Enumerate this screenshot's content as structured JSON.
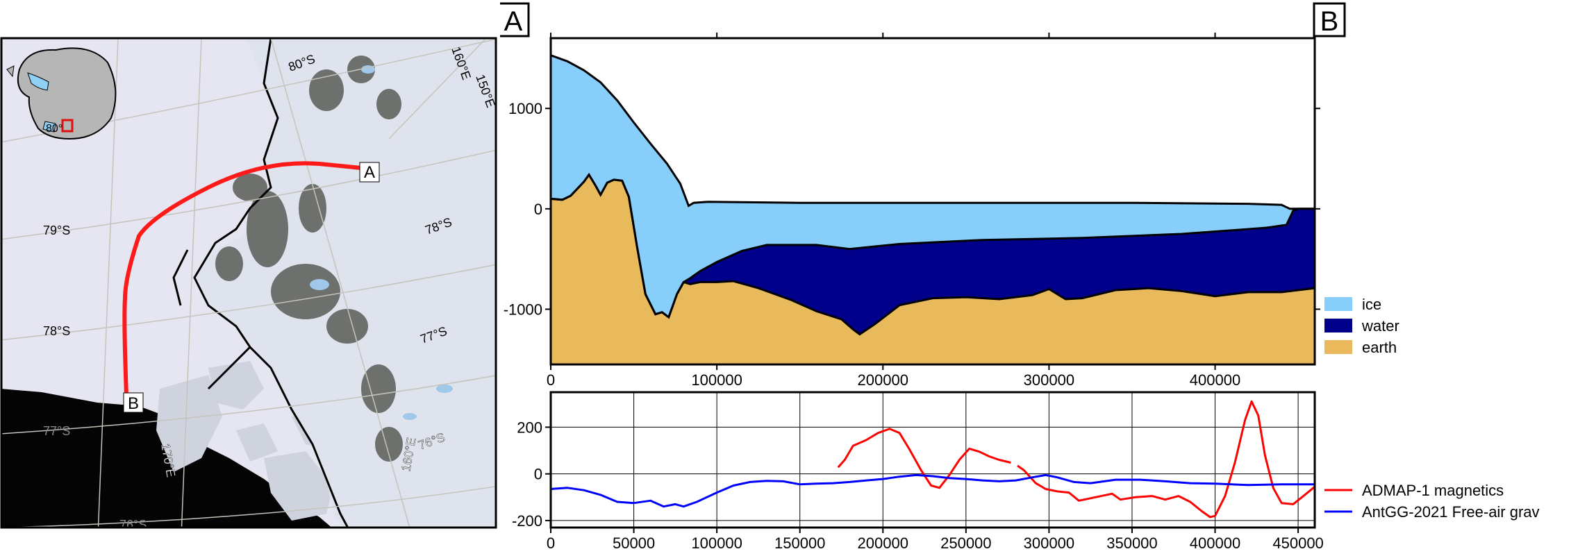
{
  "map": {
    "point_a": "A",
    "point_b": "B",
    "lat_labels": [
      "80°S",
      "79°S",
      "78°S",
      "78°S",
      "77°S",
      "77°S",
      "76°S",
      "76°S"
    ],
    "lon_labels": [
      "160°E",
      "150°E",
      "160°E",
      "170°E"
    ],
    "inset_label": "80°",
    "colors": {
      "profile_line": "#ff1a1a",
      "inset_box": "#e01010",
      "ocean": "#000000"
    }
  },
  "chart_data": [
    {
      "type": "area",
      "title": "",
      "corner_labels": [
        "A",
        "B"
      ],
      "xlim": [
        0,
        460000
      ],
      "ylim": [
        -1550,
        1700
      ],
      "x_ticks": [
        0,
        100000,
        200000,
        300000,
        400000
      ],
      "y_ticks": [
        1000,
        0,
        -1000
      ],
      "legend": [
        "ice",
        "water",
        "earth"
      ],
      "legend_position": "right",
      "colors": {
        "ice": "#87cefa",
        "water": "#00008b",
        "earth": "#e8ba5c"
      },
      "surface": [
        [
          0,
          1530
        ],
        [
          10000,
          1470
        ],
        [
          20000,
          1380
        ],
        [
          30000,
          1260
        ],
        [
          40000,
          1080
        ],
        [
          50000,
          860
        ],
        [
          60000,
          650
        ],
        [
          70000,
          450
        ],
        [
          78000,
          250
        ],
        [
          83000,
          30
        ],
        [
          86000,
          60
        ],
        [
          95000,
          70
        ],
        [
          150000,
          60
        ],
        [
          250000,
          60
        ],
        [
          350000,
          60
        ],
        [
          420000,
          50
        ],
        [
          440000,
          40
        ],
        [
          445000,
          0
        ],
        [
          460000,
          0
        ]
      ],
      "ice_base": [
        [
          0,
          100
        ],
        [
          7000,
          90
        ],
        [
          12000,
          130
        ],
        [
          20000,
          270
        ],
        [
          23000,
          340
        ],
        [
          27000,
          230
        ],
        [
          30000,
          140
        ],
        [
          34000,
          260
        ],
        [
          38000,
          290
        ],
        [
          43000,
          280
        ],
        [
          47000,
          120
        ],
        [
          52000,
          -380
        ],
        [
          57000,
          -850
        ],
        [
          63000,
          -1050
        ],
        [
          67000,
          -1030
        ],
        [
          71000,
          -1080
        ],
        [
          76000,
          -850
        ],
        [
          80000,
          -730
        ],
        [
          84000,
          -690
        ],
        [
          90000,
          -620
        ],
        [
          100000,
          -530
        ],
        [
          115000,
          -420
        ],
        [
          130000,
          -360
        ],
        [
          160000,
          -360
        ],
        [
          180000,
          -400
        ],
        [
          210000,
          -350
        ],
        [
          260000,
          -310
        ],
        [
          320000,
          -290
        ],
        [
          380000,
          -250
        ],
        [
          430000,
          -190
        ],
        [
          443000,
          -160
        ],
        [
          447000,
          -20
        ],
        [
          450000,
          0
        ],
        [
          460000,
          0
        ]
      ],
      "bed": [
        [
          0,
          100
        ],
        [
          7000,
          90
        ],
        [
          12000,
          130
        ],
        [
          20000,
          270
        ],
        [
          23000,
          340
        ],
        [
          27000,
          230
        ],
        [
          30000,
          140
        ],
        [
          34000,
          260
        ],
        [
          38000,
          290
        ],
        [
          43000,
          280
        ],
        [
          47000,
          120
        ],
        [
          52000,
          -380
        ],
        [
          57000,
          -850
        ],
        [
          63000,
          -1050
        ],
        [
          67000,
          -1030
        ],
        [
          71000,
          -1080
        ],
        [
          76000,
          -850
        ],
        [
          80000,
          -730
        ],
        [
          84000,
          -750
        ],
        [
          90000,
          -730
        ],
        [
          100000,
          -730
        ],
        [
          110000,
          -720
        ],
        [
          125000,
          -790
        ],
        [
          145000,
          -910
        ],
        [
          160000,
          -1020
        ],
        [
          175000,
          -1100
        ],
        [
          182000,
          -1200
        ],
        [
          186000,
          -1250
        ],
        [
          195000,
          -1150
        ],
        [
          210000,
          -960
        ],
        [
          230000,
          -890
        ],
        [
          250000,
          -880
        ],
        [
          270000,
          -900
        ],
        [
          290000,
          -860
        ],
        [
          300000,
          -800
        ],
        [
          310000,
          -900
        ],
        [
          320000,
          -890
        ],
        [
          340000,
          -810
        ],
        [
          360000,
          -790
        ],
        [
          380000,
          -820
        ],
        [
          400000,
          -870
        ],
        [
          420000,
          -830
        ],
        [
          440000,
          -830
        ],
        [
          460000,
          -790
        ]
      ],
      "x_markers": [
        [
          8000,
          0
        ],
        [
          10000,
          0
        ]
      ]
    },
    {
      "type": "line",
      "xlim": [
        0,
        460000
      ],
      "ylim": [
        -230,
        350
      ],
      "x_ticks": [
        0,
        50000,
        100000,
        150000,
        200000,
        250000,
        300000,
        350000,
        400000,
        450000
      ],
      "y_ticks": [
        200,
        0,
        -200
      ],
      "grid": true,
      "legend_position": "right",
      "series": [
        {
          "name": "ADMAP-1 magnetics",
          "color": "#ff0000",
          "segments": [
            [
              [
                173000,
                28
              ],
              [
                177000,
                60
              ],
              [
                182000,
                120
              ],
              [
                190000,
                145
              ],
              [
                197000,
                175
              ],
              [
                204000,
                193
              ],
              [
                210000,
                175
              ],
              [
                216000,
                105
              ],
              [
                223000,
                15
              ],
              [
                229000,
                -50
              ],
              [
                234000,
                -60
              ],
              [
                240000,
                -5
              ],
              [
                246000,
                60
              ],
              [
                252000,
                108
              ],
              [
                258000,
                95
              ],
              [
                264000,
                75
              ],
              [
                270000,
                60
              ],
              [
                277000,
                48
              ]
            ],
            [
              [
                281000,
                35
              ],
              [
                285000,
                15
              ],
              [
                292000,
                -40
              ],
              [
                298000,
                -65
              ],
              [
                305000,
                -75
              ],
              [
                312000,
                -80
              ],
              [
                318000,
                -115
              ],
              [
                328000,
                -100
              ],
              [
                338000,
                -85
              ],
              [
                343000,
                -110
              ],
              [
                352000,
                -100
              ],
              [
                362000,
                -95
              ],
              [
                370000,
                -110
              ],
              [
                378000,
                -95
              ],
              [
                385000,
                -120
              ],
              [
                392000,
                -160
              ],
              [
                397000,
                -185
              ],
              [
                400000,
                -180
              ],
              [
                406000,
                -95
              ],
              [
                412000,
                50
              ],
              [
                418000,
                230
              ],
              [
                422000,
                310
              ],
              [
                426000,
                250
              ],
              [
                430000,
                80
              ],
              [
                435000,
                -60
              ],
              [
                440000,
                -125
              ],
              [
                447000,
                -130
              ],
              [
                454000,
                -90
              ],
              [
                460000,
                -55
              ]
            ]
          ]
        },
        {
          "name": "AntGG-2021 Free-air grav",
          "color": "#0000ff",
          "segments": [
            [
              [
                0,
                -65
              ],
              [
                10000,
                -60
              ],
              [
                20000,
                -70
              ],
              [
                30000,
                -90
              ],
              [
                40000,
                -120
              ],
              [
                50000,
                -125
              ],
              [
                60000,
                -115
              ],
              [
                68000,
                -140
              ],
              [
                75000,
                -130
              ],
              [
                80000,
                -140
              ],
              [
                88000,
                -120
              ],
              [
                100000,
                -80
              ],
              [
                110000,
                -50
              ],
              [
                120000,
                -35
              ],
              [
                130000,
                -30
              ],
              [
                140000,
                -32
              ],
              [
                150000,
                -45
              ],
              [
                160000,
                -42
              ],
              [
                170000,
                -40
              ],
              [
                180000,
                -35
              ],
              [
                190000,
                -28
              ],
              [
                200000,
                -22
              ],
              [
                210000,
                -12
              ],
              [
                220000,
                -5
              ],
              [
                230000,
                -10
              ],
              [
                240000,
                -18
              ],
              [
                250000,
                -22
              ],
              [
                260000,
                -28
              ],
              [
                270000,
                -32
              ],
              [
                280000,
                -28
              ],
              [
                290000,
                -15
              ],
              [
                298000,
                -5
              ],
              [
                305000,
                -15
              ],
              [
                315000,
                -35
              ],
              [
                325000,
                -40
              ],
              [
                340000,
                -25
              ],
              [
                355000,
                -25
              ],
              [
                370000,
                -32
              ],
              [
                385000,
                -40
              ],
              [
                400000,
                -42
              ],
              [
                420000,
                -48
              ],
              [
                440000,
                -45
              ],
              [
                460000,
                -45
              ]
            ]
          ]
        }
      ]
    }
  ]
}
